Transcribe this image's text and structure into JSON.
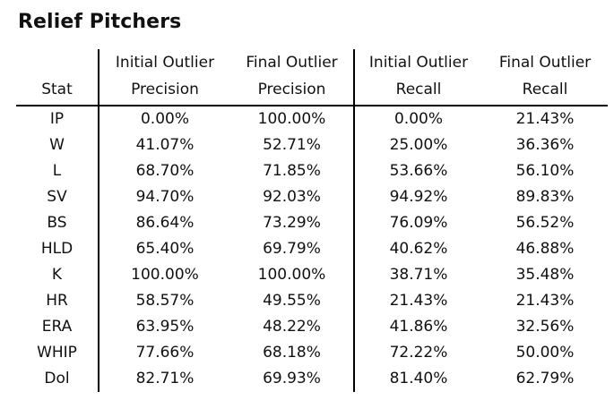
{
  "title": "Relief Pitchers",
  "header": {
    "stat": "Stat",
    "col1_line1": "Initial Outlier",
    "col1_line2": "Precision",
    "col2_line1": "Final Outlier",
    "col2_line2": "Precision",
    "col3_line1": "Initial Outlier",
    "col3_line2": "Recall",
    "col4_line1": "Final Outlier",
    "col4_line2": "Recall"
  },
  "rows": [
    {
      "stat": "IP",
      "initial_precision": "0.00%",
      "final_precision": "100.00%",
      "initial_recall": "0.00%",
      "final_recall": "21.43%"
    },
    {
      "stat": "W",
      "initial_precision": "41.07%",
      "final_precision": "52.71%",
      "initial_recall": "25.00%",
      "final_recall": "36.36%"
    },
    {
      "stat": "L",
      "initial_precision": "68.70%",
      "final_precision": "71.85%",
      "initial_recall": "53.66%",
      "final_recall": "56.10%"
    },
    {
      "stat": "SV",
      "initial_precision": "94.70%",
      "final_precision": "92.03%",
      "initial_recall": "94.92%",
      "final_recall": "89.83%"
    },
    {
      "stat": "BS",
      "initial_precision": "86.64%",
      "final_precision": "73.29%",
      "initial_recall": "76.09%",
      "final_recall": "56.52%"
    },
    {
      "stat": "HLD",
      "initial_precision": "65.40%",
      "final_precision": "69.79%",
      "initial_recall": "40.62%",
      "final_recall": "46.88%"
    },
    {
      "stat": "K",
      "initial_precision": "100.00%",
      "final_precision": "100.00%",
      "initial_recall": "38.71%",
      "final_recall": "35.48%"
    },
    {
      "stat": "HR",
      "initial_precision": "58.57%",
      "final_precision": "49.55%",
      "initial_recall": "21.43%",
      "final_recall": "21.43%"
    },
    {
      "stat": "ERA",
      "initial_precision": "63.95%",
      "final_precision": "48.22%",
      "initial_recall": "41.86%",
      "final_recall": "32.56%"
    },
    {
      "stat": "WHIP",
      "initial_precision": "77.66%",
      "final_precision": "68.18%",
      "initial_recall": "72.22%",
      "final_recall": "50.00%"
    },
    {
      "stat": "Dol",
      "initial_precision": "82.71%",
      "final_precision": "69.93%",
      "initial_recall": "81.40%",
      "final_recall": "62.79%"
    }
  ]
}
